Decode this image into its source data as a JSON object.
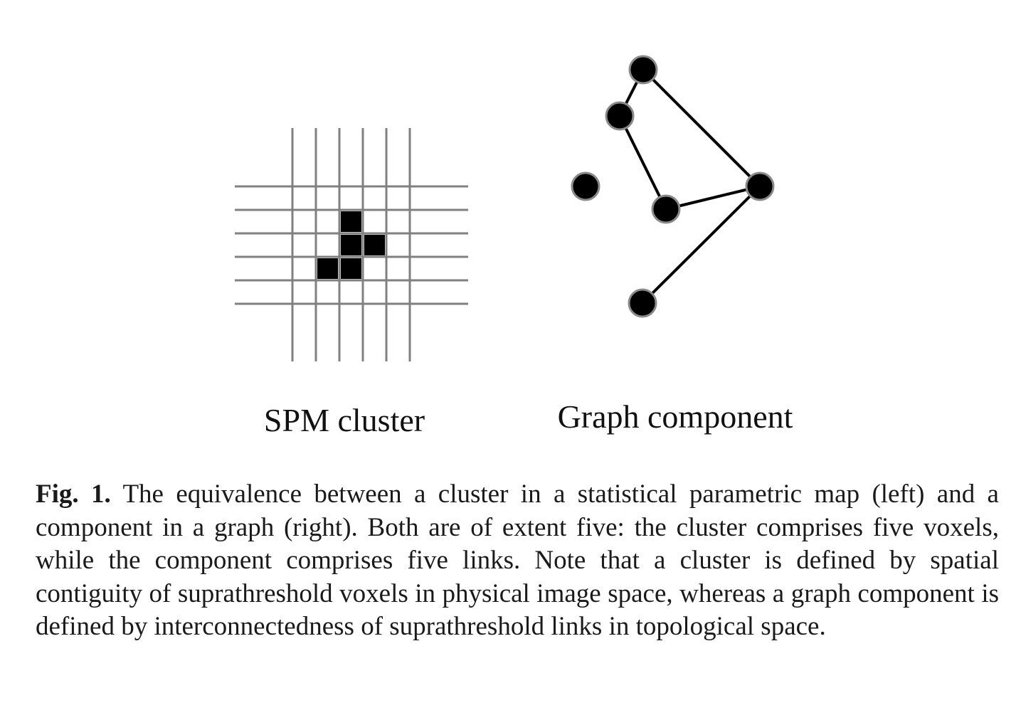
{
  "figure": {
    "left_panel": {
      "label": "SPM cluster",
      "grid_columns": 6,
      "grid_rows": 6,
      "voxels": [
        {
          "col": 2,
          "row": 1
        },
        {
          "col": 2,
          "row": 2
        },
        {
          "col": 3,
          "row": 2
        },
        {
          "col": 1,
          "row": 3
        },
        {
          "col": 2,
          "row": 3
        }
      ]
    },
    "right_panel": {
      "label": "Graph component",
      "nodes": [
        "n1",
        "n2",
        "n3",
        "n4",
        "n5",
        "n6"
      ],
      "edges": [
        [
          "n1",
          "n2"
        ],
        [
          "n1",
          "n4"
        ],
        [
          "n2",
          "n5"
        ],
        [
          "n5",
          "n4"
        ],
        [
          "n4",
          "n6"
        ]
      ]
    }
  },
  "caption": {
    "label": "Fig. 1.",
    "text": "The equivalence between a cluster in a statistical parametric map (left) and a component in a graph (right). Both are of extent five: the cluster comprises five voxels, while the component comprises five links. Note that a cluster is defined by spatial contiguity of suprathreshold voxels in physical image space, whereas a graph component is defined by interconnectedness of suprathreshold links in topological space."
  }
}
